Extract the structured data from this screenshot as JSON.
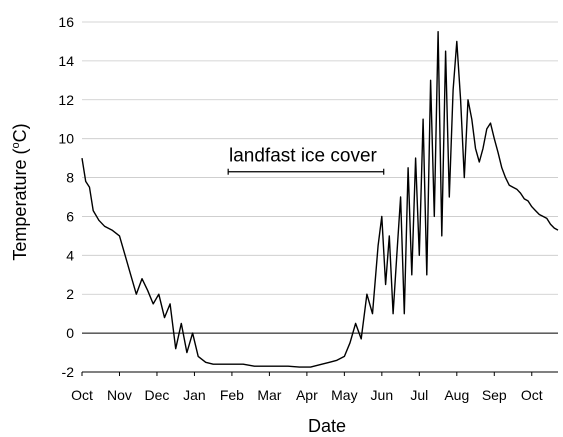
{
  "chart_data": {
    "type": "line",
    "xlabel": "Date",
    "ylabel_main": "Temperature (",
    "ylabel_sup": "o",
    "ylabel_tail": "C)",
    "ylim": [
      -2,
      16
    ],
    "y_ticks": [
      -2,
      0,
      2,
      4,
      6,
      8,
      10,
      12,
      14,
      16
    ],
    "y_tick_labels": [
      "-2",
      "0",
      "2",
      "4",
      "6",
      "8",
      "10",
      "12",
      "14",
      "16"
    ],
    "xlim": [
      0,
      12.7
    ],
    "x_ticks": [
      0,
      1,
      2,
      3,
      4,
      5,
      6,
      7,
      8,
      9,
      10,
      11,
      12
    ],
    "x_tick_labels": [
      "Oct",
      "Nov",
      "Dec",
      "Jan",
      "Feb",
      "Mar",
      "Apr",
      "May",
      "Jun",
      "Jul",
      "Aug",
      "Sep",
      "Oct"
    ],
    "reference_line_y": 0,
    "color": "#000000",
    "annotation": {
      "text": "landfast ice cover",
      "x_start": 3.9,
      "x_end": 8.05,
      "y": 8.3
    },
    "series": [
      {
        "x": [
          0,
          0.1,
          0.2,
          0.3,
          0.45,
          0.6,
          0.8,
          1.0,
          1.15,
          1.3,
          1.45,
          1.6,
          1.75,
          1.9,
          2.05,
          2.2,
          2.35,
          2.5,
          2.65,
          2.8,
          2.95,
          3.1,
          3.3,
          3.5,
          3.7,
          4.0,
          4.3,
          4.6,
          4.9,
          5.2,
          5.5,
          5.8,
          6.1,
          6.4,
          6.6,
          6.8,
          7.0,
          7.15,
          7.3,
          7.45,
          7.6,
          7.75,
          7.9,
          8.0,
          8.1,
          8.2,
          8.3,
          8.4,
          8.5,
          8.6,
          8.7,
          8.8,
          8.9,
          9.0,
          9.1,
          9.2,
          9.3,
          9.4,
          9.5,
          9.6,
          9.7,
          9.8,
          9.9,
          10.0,
          10.1,
          10.2,
          10.3,
          10.4,
          10.5,
          10.6,
          10.7,
          10.8,
          10.9,
          11.0,
          11.1,
          11.2,
          11.3,
          11.4,
          11.5,
          11.6,
          11.7,
          11.8,
          11.9,
          12.0,
          12.1,
          12.2,
          12.3,
          12.4,
          12.5,
          12.6,
          12.7
        ],
        "y": [
          9.0,
          7.8,
          7.5,
          6.3,
          5.8,
          5.5,
          5.3,
          5.0,
          4.0,
          3.0,
          2.0,
          2.8,
          2.2,
          1.5,
          2.0,
          0.8,
          1.5,
          -0.8,
          0.5,
          -1.0,
          0.0,
          -1.2,
          -1.5,
          -1.6,
          -1.6,
          -1.6,
          -1.6,
          -1.7,
          -1.7,
          -1.7,
          -1.7,
          -1.75,
          -1.75,
          -1.6,
          -1.5,
          -1.4,
          -1.2,
          -0.5,
          0.5,
          -0.3,
          2.0,
          1.0,
          4.5,
          6.0,
          2.5,
          5.0,
          1.0,
          4.0,
          7.0,
          1.0,
          8.5,
          3.0,
          9.0,
          4.0,
          11.0,
          3.0,
          13.0,
          6.0,
          15.5,
          5.0,
          14.5,
          7.0,
          12.5,
          15.0,
          12.0,
          8.0,
          12.0,
          11.0,
          9.5,
          8.8,
          9.5,
          10.5,
          10.8,
          10.0,
          9.3,
          8.5,
          8.0,
          7.6,
          7.5,
          7.4,
          7.2,
          6.9,
          6.8,
          6.5,
          6.3,
          6.1,
          6.0,
          5.9,
          5.6,
          5.4,
          5.3
        ]
      }
    ]
  }
}
